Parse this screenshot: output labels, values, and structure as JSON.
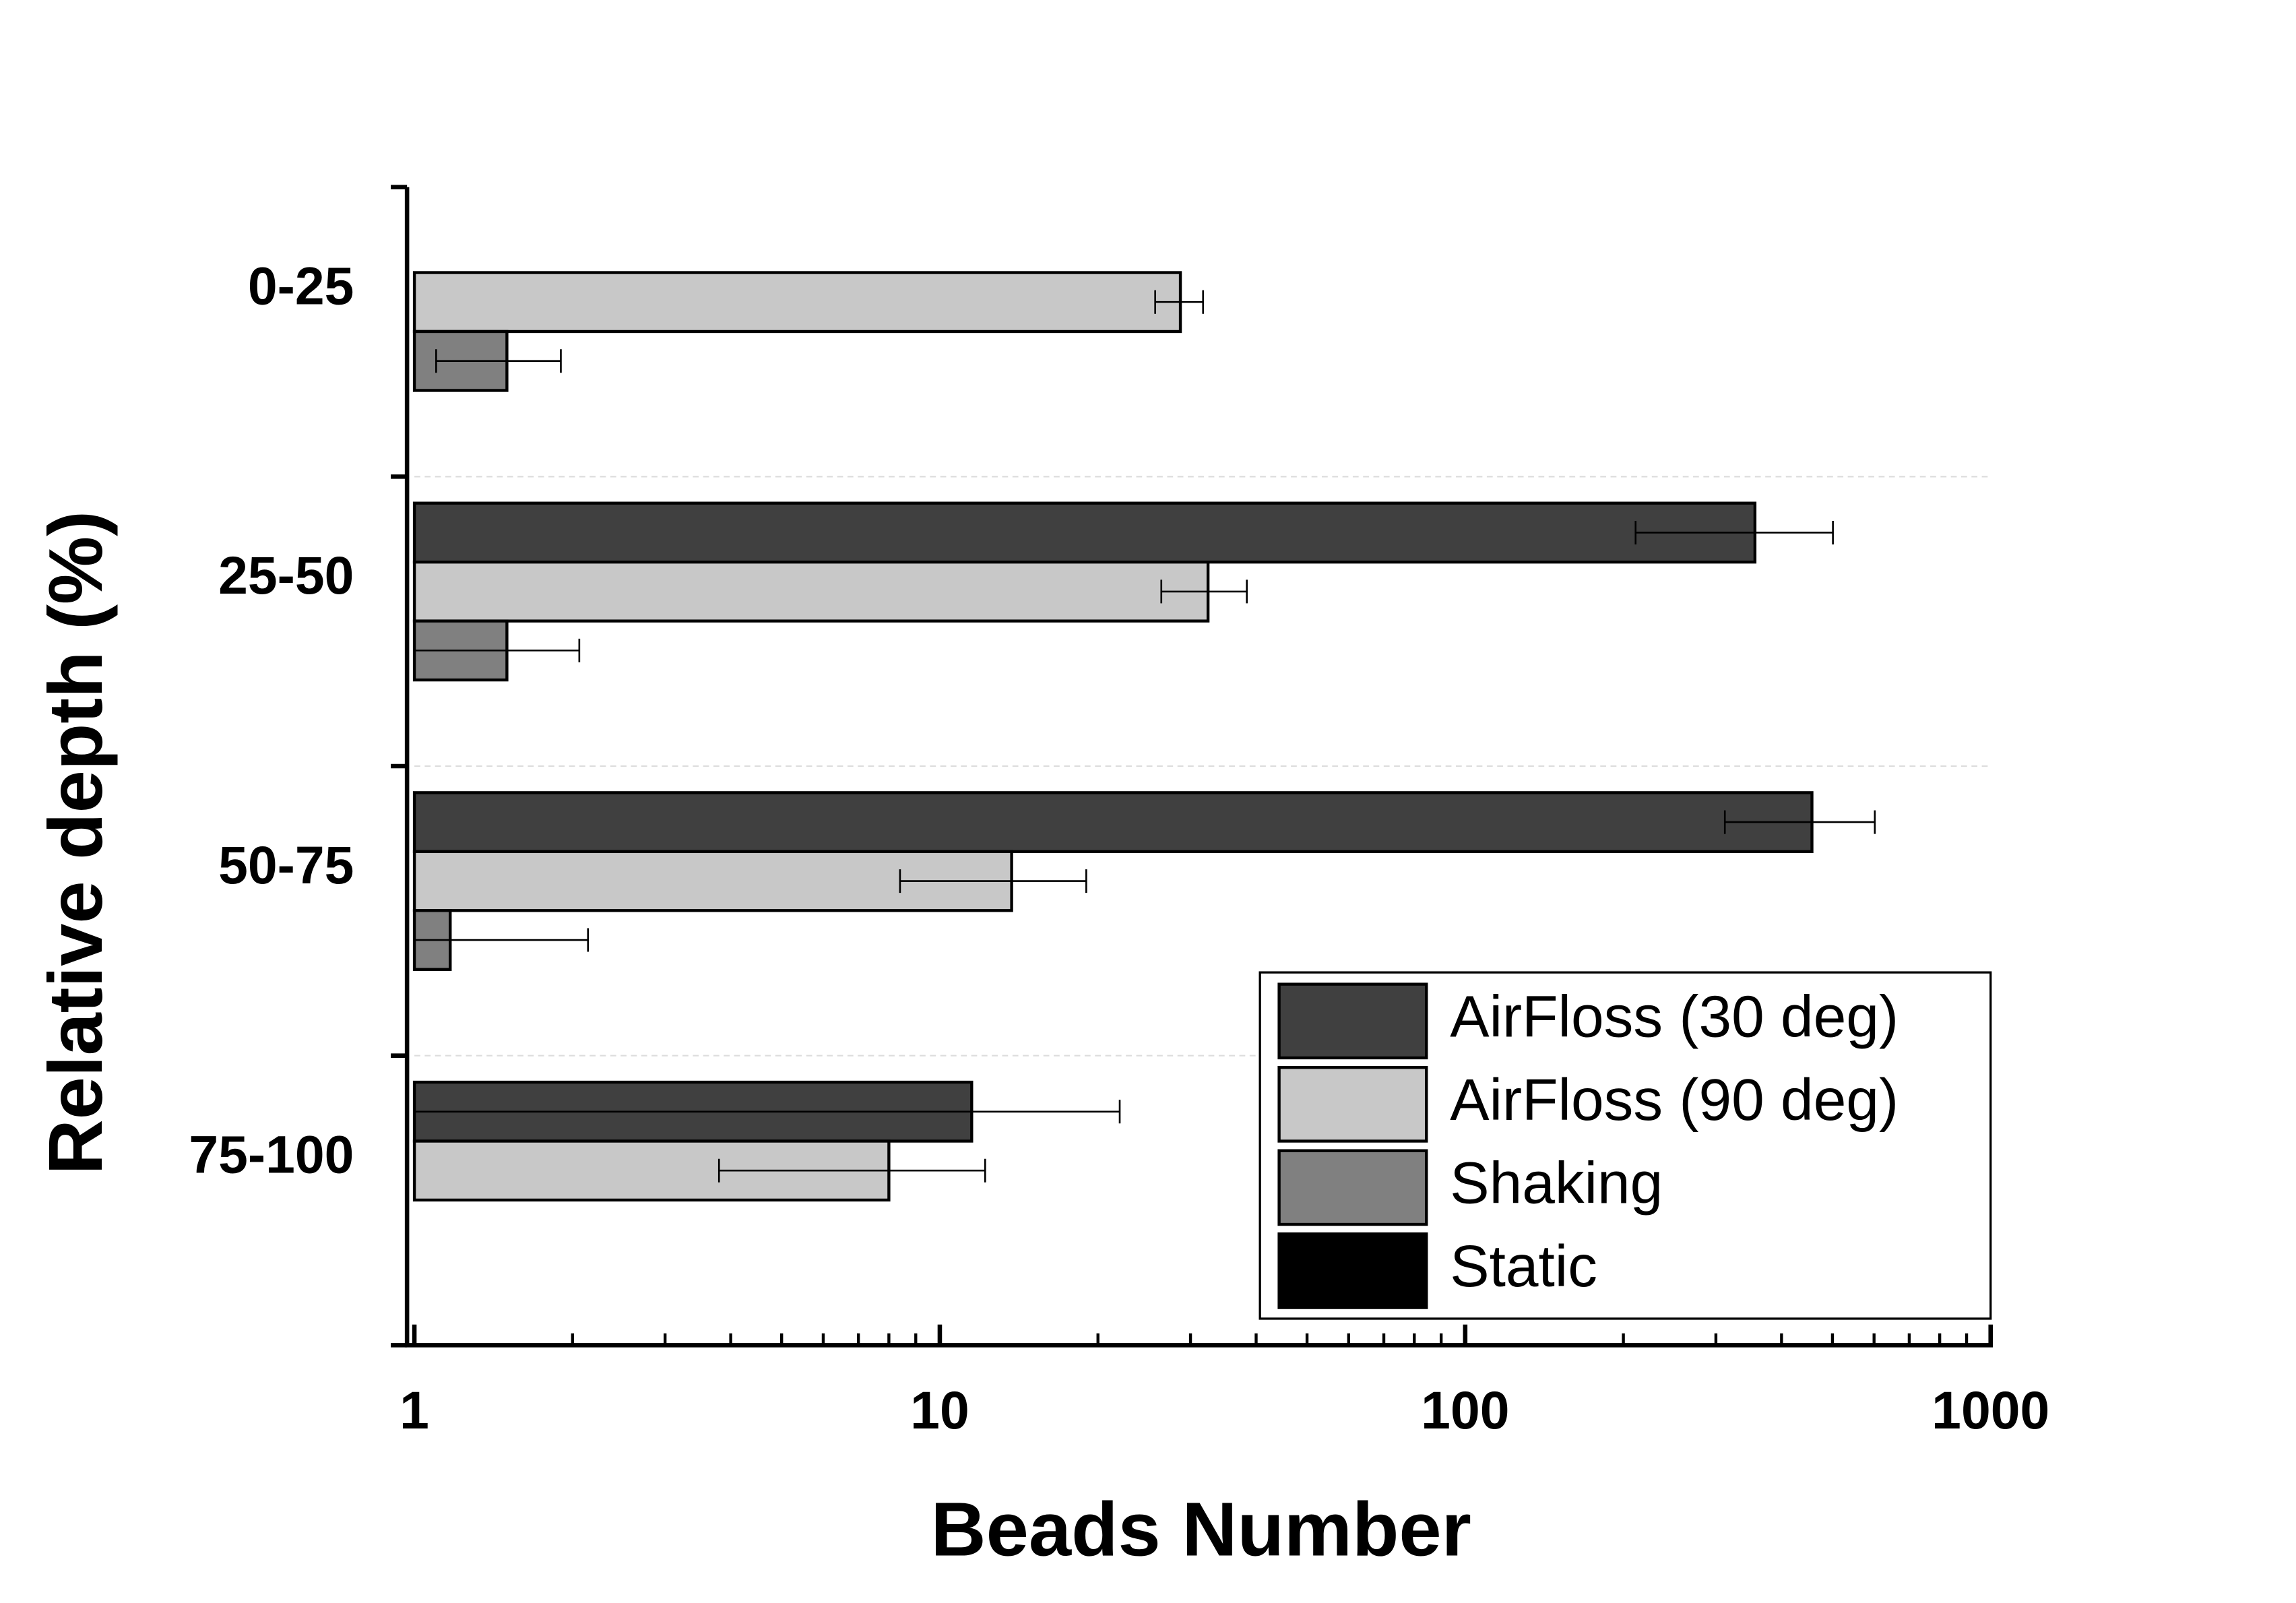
{
  "chart_data": {
    "type": "hbar",
    "x_label": "Beads Number",
    "y_label": "Relative depth (%)",
    "categories": [
      "0-25",
      "25-50",
      "50-75",
      "75-100"
    ],
    "log_x": true,
    "xlim": [
      1,
      1000
    ],
    "xticks": [
      1,
      10,
      100,
      1000
    ],
    "minor_ticks": true,
    "grid": true,
    "legend": "lower right",
    "series": [
      {
        "name": "AirFloss (30 deg)",
        "color": "#404040",
        "values": [
          null,
          356,
          457,
          11.5
        ],
        "errors": [
          null,
          145,
          145,
          10.5
        ]
      },
      {
        "name": "AirFloss (90 deg)",
        "color": "#c8c8c8",
        "values": [
          28.7,
          32.4,
          13.7,
          8.0
        ],
        "errors": [
          3,
          6,
          5.3,
          4.2
        ]
      },
      {
        "name": "Shaking",
        "color": "#808080",
        "values": [
          1.5,
          1.5,
          1.17,
          1
        ],
        "errors": [
          0.4,
          0.56,
          0.97,
          null
        ]
      },
      {
        "name": "Static",
        "color": "#000000",
        "values": [
          1,
          null,
          null,
          null
        ],
        "errors": [
          null,
          null,
          null,
          null
        ]
      }
    ]
  }
}
